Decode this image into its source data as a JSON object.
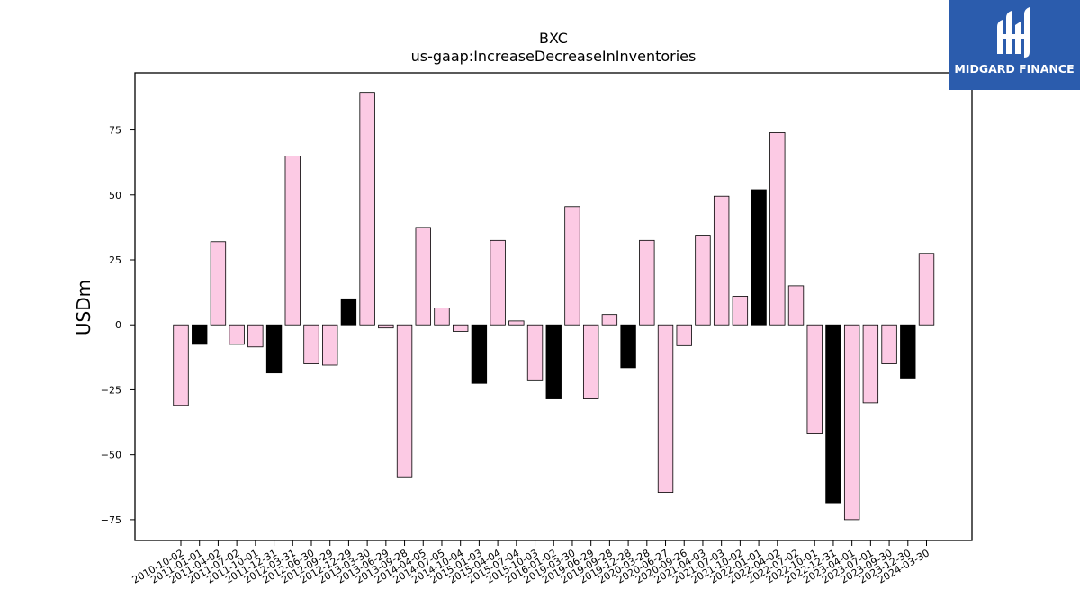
{
  "chart_data": {
    "type": "bar",
    "title": "BXC",
    "subtitle": "us-gaap:IncreaseDecreaseInInventories",
    "xlabel": "",
    "ylabel": "USDm",
    "ylim": [
      -83,
      97
    ],
    "yticks": [
      -75,
      -50,
      -25,
      0,
      25,
      50,
      75
    ],
    "ytick_labels": [
      "−75",
      "−50",
      "−25",
      "0",
      "25",
      "50",
      "75"
    ],
    "grid": false,
    "colors": {
      "default": "#fccae4",
      "highlight": "#000000"
    },
    "categories": [
      "2010-10-02",
      "2011-01-01",
      "2011-04-02",
      "2011-07-02",
      "2011-10-01",
      "2011-12-31",
      "2012-03-31",
      "2012-06-30",
      "2012-09-29",
      "2012-12-29",
      "2013-03-30",
      "2013-06-29",
      "2013-09-28",
      "2014-04-05",
      "2014-07-05",
      "2014-10-04",
      "2015-01-03",
      "2015-04-04",
      "2015-07-04",
      "2015-10-03",
      "2016-01-02",
      "2019-03-30",
      "2019-06-29",
      "2019-09-28",
      "2019-12-28",
      "2020-03-28",
      "2020-06-27",
      "2020-09-26",
      "2021-04-03",
      "2021-07-03",
      "2021-10-02",
      "2022-01-01",
      "2022-04-02",
      "2022-07-02",
      "2022-10-01",
      "2022-12-31",
      "2023-04-01",
      "2023-07-01",
      "2023-09-30",
      "2023-12-30",
      "2024-03-30"
    ],
    "values": [
      -31,
      -7.5,
      32,
      -7.5,
      -8.5,
      -18.5,
      65,
      -15,
      -15.5,
      10,
      89.5,
      -1.2,
      -58.5,
      37.5,
      6.5,
      -2.5,
      -22.5,
      32.5,
      1.5,
      -21.5,
      -28.5,
      45.5,
      -28.5,
      4,
      -16.5,
      32.5,
      -64.5,
      -8,
      34.5,
      49.5,
      11,
      52,
      74,
      15,
      -42,
      -68.5,
      -75,
      -30,
      -15,
      -20.5,
      27.5
    ],
    "highlighted": [
      false,
      true,
      false,
      false,
      false,
      true,
      false,
      false,
      false,
      true,
      false,
      false,
      false,
      false,
      false,
      false,
      true,
      false,
      false,
      false,
      true,
      false,
      false,
      false,
      true,
      false,
      false,
      false,
      false,
      false,
      false,
      true,
      false,
      false,
      false,
      true,
      false,
      false,
      false,
      true,
      false
    ]
  },
  "logo": {
    "text": "MIDGARD FINANCE",
    "background": "#2b5cad",
    "foreground": "#ffffff"
  }
}
